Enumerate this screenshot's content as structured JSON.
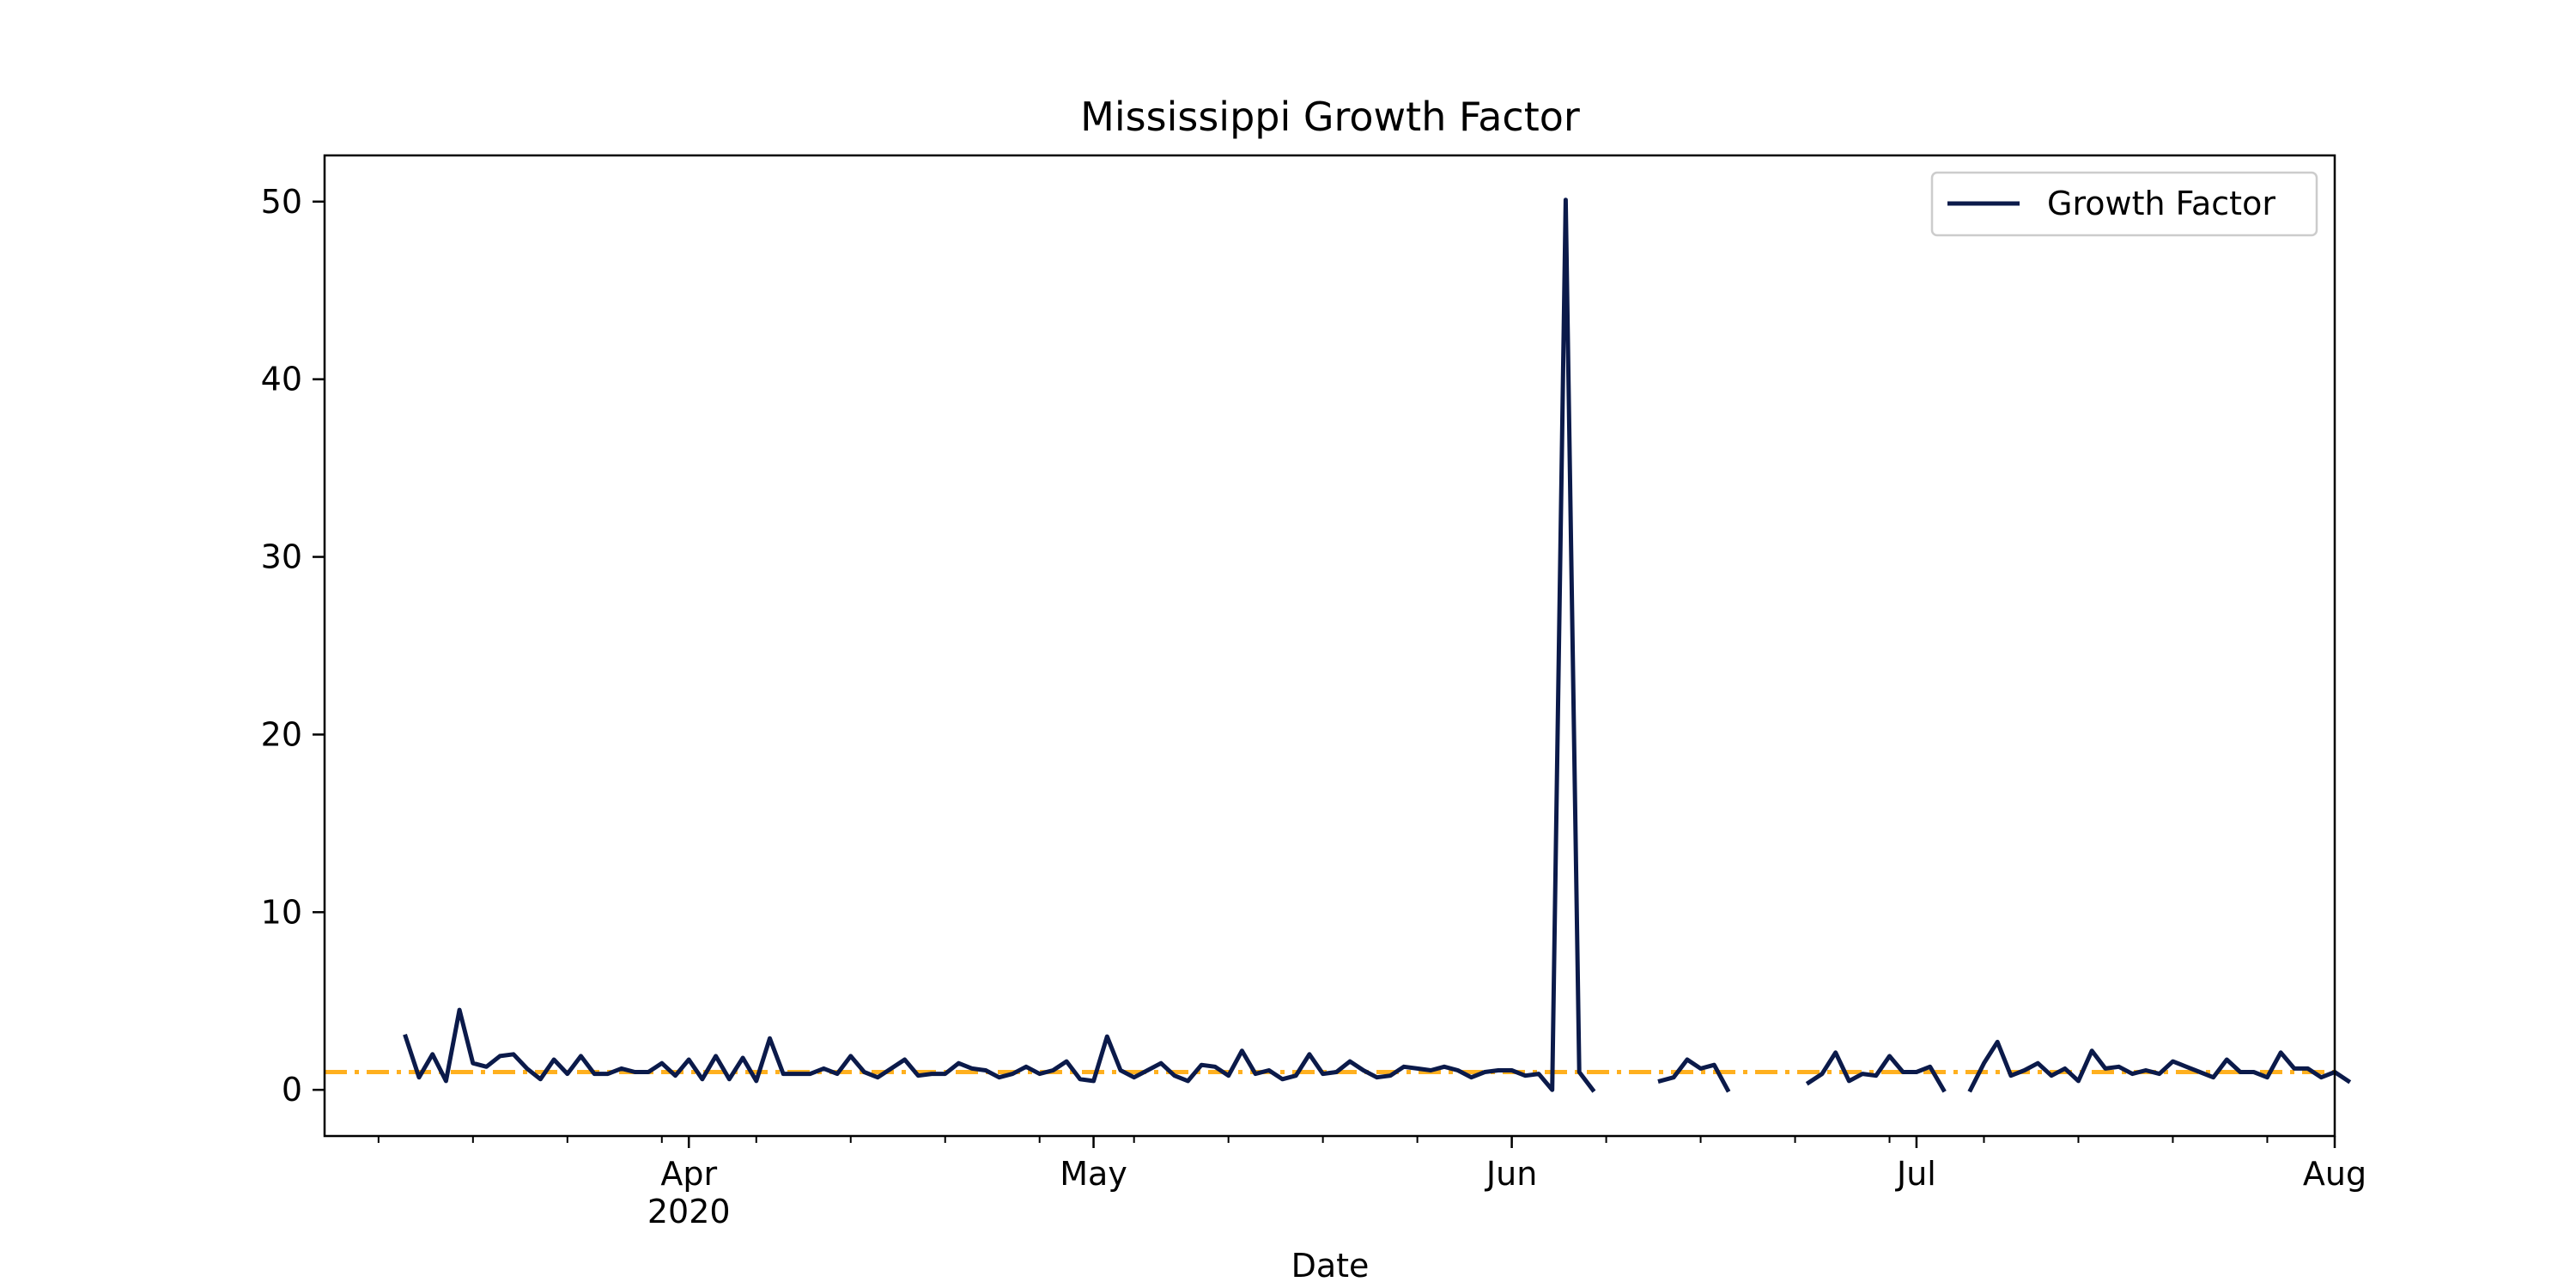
{
  "chart_data": {
    "type": "line",
    "title": "Mississippi Growth Factor",
    "xlabel": "Date",
    "ylabel": "",
    "xlim": [
      "2020-03-05",
      "2020-08-01"
    ],
    "ylim": [
      -2.6,
      52.6
    ],
    "y_ticks": [
      0,
      10,
      20,
      30,
      40,
      50
    ],
    "x_ticks": [
      {
        "date": "2020-04-01",
        "label": "Apr",
        "sublabel": "2020"
      },
      {
        "date": "2020-05-01",
        "label": "May",
        "sublabel": ""
      },
      {
        "date": "2020-06-01",
        "label": "Jun",
        "sublabel": ""
      },
      {
        "date": "2020-07-01",
        "label": "Jul",
        "sublabel": ""
      },
      {
        "date": "2020-08-01",
        "label": "Aug",
        "sublabel": ""
      }
    ],
    "grid": false,
    "legend_position": "top-right",
    "reference_line": {
      "y": 1.0,
      "color": "#ffb01f",
      "style": "dash-dot"
    },
    "series": [
      {
        "name": "Growth Factor",
        "color": "#0b1a4a",
        "start_date": "2020-03-11",
        "values": [
          3.0,
          0.7,
          2.0,
          0.5,
          4.5,
          1.5,
          1.3,
          1.9,
          2.0,
          1.2,
          0.6,
          1.7,
          0.9,
          1.9,
          0.9,
          0.9,
          1.2,
          1.0,
          1.0,
          1.5,
          0.8,
          1.7,
          0.6,
          1.9,
          0.6,
          1.8,
          0.5,
          2.9,
          0.9,
          0.9,
          0.9,
          1.2,
          0.9,
          1.9,
          1.0,
          0.7,
          1.2,
          1.7,
          0.8,
          0.9,
          0.9,
          1.5,
          1.2,
          1.1,
          0.7,
          0.9,
          1.3,
          0.9,
          1.1,
          1.6,
          0.6,
          0.5,
          3.0,
          1.1,
          0.7,
          1.1,
          1.5,
          0.8,
          0.5,
          1.4,
          1.3,
          0.8,
          2.2,
          0.9,
          1.1,
          0.6,
          0.8,
          2.0,
          0.9,
          1.0,
          1.6,
          1.1,
          0.7,
          0.8,
          1.3,
          1.2,
          1.1,
          1.3,
          1.1,
          0.7,
          1.0,
          1.1,
          1.1,
          0.8,
          0.9,
          0.0,
          50.1,
          1.0,
          0.0,
          null,
          null,
          null,
          null,
          0.5,
          0.7,
          1.7,
          1.2,
          1.4,
          0.0,
          null,
          null,
          null,
          null,
          null,
          0.4,
          0.9,
          2.1,
          0.5,
          0.9,
          0.8,
          1.9,
          1.0,
          1.0,
          1.3,
          0.0,
          null,
          0.0,
          1.5,
          2.7,
          0.8,
          1.1,
          1.5,
          0.8,
          1.2,
          0.5,
          2.2,
          1.2,
          1.3,
          0.9,
          1.1,
          0.9,
          1.6,
          1.3,
          1.0,
          0.7,
          1.7,
          1.0,
          1.0,
          0.7,
          2.1,
          1.2,
          1.2,
          0.7,
          1.0,
          0.5
        ]
      }
    ]
  }
}
